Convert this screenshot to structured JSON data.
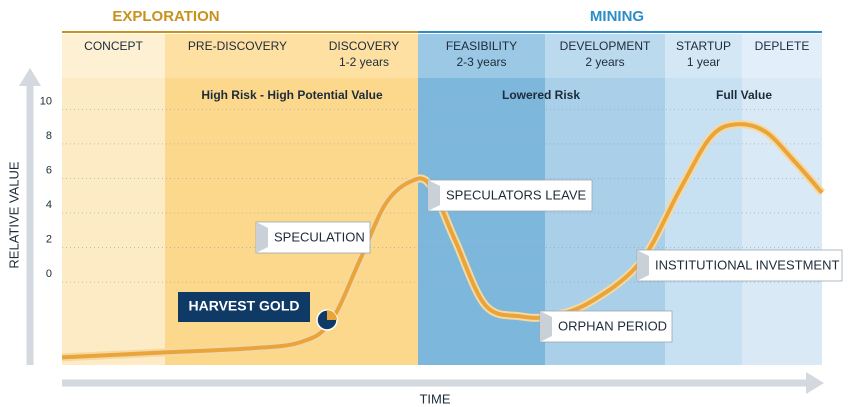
{
  "chart_data": {
    "type": "line",
    "phases": [
      "EXPLORATION",
      "MINING"
    ],
    "stages": [
      {
        "name": "CONCEPT"
      },
      {
        "name": "PRE-DISCOVERY"
      },
      {
        "name": "DISCOVERY",
        "duration": "1-2 years"
      },
      {
        "name": "FEASIBILITY",
        "duration": "2-3 years"
      },
      {
        "name": "DEVELOPMENT",
        "duration": "2 years"
      },
      {
        "name": "STARTUP",
        "duration": "1 year"
      },
      {
        "name": "DEPLETE"
      }
    ],
    "risk_labels": [
      "High Risk - High Potential Value",
      "Lowered Risk",
      "Full Value"
    ],
    "annotations": [
      "SPECULATION",
      "SPECULATORS LEAVE",
      "ORPHAN PERIOD",
      "INSTITUTIONAL INVESTMENT",
      "HARVEST GOLD"
    ],
    "x_label": "TIME",
    "y_label": "RELATIVE VALUE",
    "x": [
      0,
      13.6,
      24.7,
      31.3,
      35.3,
      39.2,
      42.5,
      45.8,
      48.4,
      51.7,
      55.7,
      60.3,
      64.2,
      69.5,
      76.1,
      81.3,
      85.3,
      88.6,
      92.5,
      96.4,
      100
    ],
    "values": [
      -4.36,
      -4.07,
      -3.84,
      -3.49,
      -2.33,
      1.28,
      4.48,
      5.81,
      5.64,
      2.44,
      -1.34,
      -1.98,
      -1.98,
      -1.16,
      1.16,
      5.35,
      8.37,
      9.13,
      8.72,
      6.98,
      5.17
    ],
    "color": "#e9a43b",
    "xlim": [
      0,
      100
    ],
    "ylim": [
      -4.8,
      11.7
    ],
    "yticks": [
      10,
      8,
      6,
      4,
      2,
      0
    ],
    "grid": true
  }
}
